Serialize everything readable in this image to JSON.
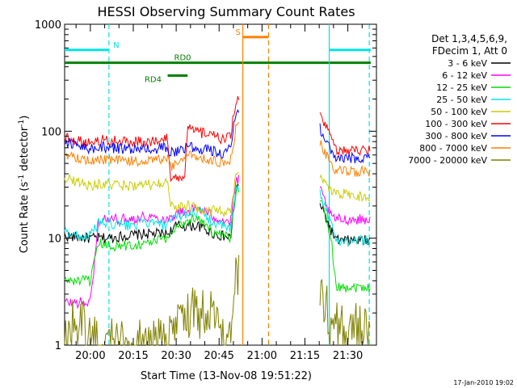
{
  "chart_data": {
    "type": "line",
    "title": "HESSI Observing Summary Count Rates",
    "xlabel": "Start Time (13-Nov-08 19:51:22)",
    "ylabel_parts": [
      "Count Rate (s",
      "-1",
      " detector",
      "-1",
      ")"
    ],
    "yscale": "log",
    "ylim": [
      1,
      1000
    ],
    "xlim_minutes": [
      -9,
      100
    ],
    "x_ticks": [
      {
        "label": "20:00",
        "minute": 0
      },
      {
        "label": "20:15",
        "minute": 15
      },
      {
        "label": "20:30",
        "minute": 30
      },
      {
        "label": "20:45",
        "minute": 45
      },
      {
        "label": "21:00",
        "minute": 60
      },
      {
        "label": "21:15",
        "minute": 75
      },
      {
        "label": "21:30",
        "minute": 90
      }
    ],
    "y_ticks": [
      {
        "label": "1",
        "value": 1
      },
      {
        "label": "10",
        "value": 10
      },
      {
        "label": "100",
        "value": 100
      },
      {
        "label": "1000",
        "value": 1000
      }
    ],
    "legend_header": [
      "Det 1,3,4,5,6,9,",
      "FDecim 1, Att 0"
    ],
    "legend_placement": "right",
    "footer_date": "17-Jan-2010 19:02",
    "flags": [
      {
        "label": "N",
        "color": "#00e5e5",
        "segments": [
          [
            -9,
            6.5
          ],
          [
            83.5,
            98
          ]
        ],
        "level": 0.92
      },
      {
        "label": "S",
        "color": "#ff8000",
        "segments": [
          [
            53.3,
            62.3
          ]
        ],
        "level": 0.96
      },
      {
        "label": "RD0",
        "color": "#008000",
        "segments": [
          [
            -9,
            98
          ]
        ],
        "level": 0.88
      },
      {
        "label": "RD4",
        "color": "#008000",
        "segments": [
          [
            27,
            34
          ]
        ],
        "level": 0.84
      }
    ],
    "vertical_lines": [
      {
        "minute": 6.5,
        "color": "#00e5e5",
        "style": "dashed"
      },
      {
        "minute": 83.5,
        "color": "#00e5e5",
        "style": "solid"
      },
      {
        "minute": 97.5,
        "color": "#00e5e5",
        "style": "dashed"
      },
      {
        "minute": 53.3,
        "color": "#ff8000",
        "style": "solid"
      },
      {
        "minute": 62.3,
        "color": "#ff8000",
        "style": "dashed"
      }
    ],
    "gap_minutes": [
      52,
      80
    ],
    "series": [
      {
        "name": "3 - 6 keV",
        "color": "#000000",
        "points": [
          [
            -9,
            10.5
          ],
          [
            0,
            10
          ],
          [
            6,
            10
          ],
          [
            12,
            10.5
          ],
          [
            20,
            11
          ],
          [
            27,
            11
          ],
          [
            30,
            13
          ],
          [
            38,
            13
          ],
          [
            43,
            11
          ],
          [
            49,
            10
          ],
          [
            51,
            30
          ],
          [
            80,
            22
          ],
          [
            84,
            12
          ],
          [
            86,
            9.5
          ],
          [
            98,
            9.5
          ]
        ]
      },
      {
        "name": "6 - 12 keV",
        "color": "#ff00ff",
        "points": [
          [
            -9,
            2.5
          ],
          [
            0,
            2.5
          ],
          [
            3,
            15
          ],
          [
            12,
            15
          ],
          [
            20,
            16
          ],
          [
            27,
            15
          ],
          [
            30,
            17
          ],
          [
            38,
            19
          ],
          [
            43,
            16
          ],
          [
            49,
            14
          ],
          [
            51,
            35
          ],
          [
            80,
            30
          ],
          [
            84,
            16
          ],
          [
            86,
            15
          ],
          [
            98,
            15
          ]
        ]
      },
      {
        "name": "12 - 25 keV",
        "color": "#00dd00",
        "points": [
          [
            -9,
            4
          ],
          [
            0,
            4
          ],
          [
            3,
            9
          ],
          [
            6,
            8.5
          ],
          [
            12,
            8.5
          ],
          [
            20,
            9
          ],
          [
            27,
            10
          ],
          [
            30,
            13
          ],
          [
            38,
            16
          ],
          [
            43,
            11
          ],
          [
            49,
            10
          ],
          [
            51,
            30
          ],
          [
            80,
            25
          ],
          [
            84,
            11
          ],
          [
            86,
            3.5
          ],
          [
            98,
            3.5
          ]
        ]
      },
      {
        "name": "25 - 50 keV",
        "color": "#00e5e5",
        "points": [
          [
            -9,
            11.5
          ],
          [
            -4,
            10.5
          ],
          [
            0,
            10.5
          ],
          [
            3,
            14
          ],
          [
            12,
            13
          ],
          [
            20,
            14
          ],
          [
            27,
            13
          ],
          [
            30,
            16
          ],
          [
            38,
            18
          ],
          [
            43,
            14
          ],
          [
            49,
            12
          ],
          [
            51,
            30
          ],
          [
            80,
            28
          ],
          [
            84,
            14
          ],
          [
            86,
            9.5
          ],
          [
            98,
            9.5
          ]
        ]
      },
      {
        "name": "50 - 100 keV",
        "color": "#cccc00",
        "points": [
          [
            -9,
            37
          ],
          [
            0,
            31
          ],
          [
            3,
            32
          ],
          [
            12,
            31
          ],
          [
            20,
            31
          ],
          [
            27,
            33
          ],
          [
            28,
            20
          ],
          [
            31,
            20
          ],
          [
            34,
            20
          ],
          [
            38,
            19
          ],
          [
            43,
            18
          ],
          [
            49,
            17
          ],
          [
            51,
            40
          ],
          [
            80,
            38
          ],
          [
            84,
            27
          ],
          [
            98,
            24
          ]
        ]
      },
      {
        "name": "100 - 300 keV",
        "color": "#ff0000",
        "points": [
          [
            -9,
            88
          ],
          [
            0,
            78
          ],
          [
            3,
            83
          ],
          [
            12,
            80
          ],
          [
            20,
            80
          ],
          [
            27,
            85
          ],
          [
            28,
            35
          ],
          [
            31,
            37
          ],
          [
            33,
            35
          ],
          [
            34,
            105
          ],
          [
            40,
            95
          ],
          [
            46,
            85
          ],
          [
            49,
            90
          ],
          [
            51,
            200
          ],
          [
            80,
            140
          ],
          [
            84,
            90
          ],
          [
            86,
            65
          ],
          [
            98,
            68
          ]
        ]
      },
      {
        "name": "300 - 800 keV",
        "color": "#0000ff",
        "points": [
          [
            -9,
            80
          ],
          [
            0,
            68
          ],
          [
            3,
            72
          ],
          [
            12,
            68
          ],
          [
            20,
            68
          ],
          [
            27,
            70
          ],
          [
            28,
            62
          ],
          [
            34,
            72
          ],
          [
            40,
            68
          ],
          [
            46,
            62
          ],
          [
            49,
            70
          ],
          [
            51,
            160
          ],
          [
            80,
            110
          ],
          [
            84,
            65
          ],
          [
            86,
            55
          ],
          [
            98,
            57
          ]
        ]
      },
      {
        "name": "800 - 7000 keV",
        "color": "#ff8000",
        "points": [
          [
            -9,
            62
          ],
          [
            0,
            52
          ],
          [
            3,
            55
          ],
          [
            12,
            52
          ],
          [
            20,
            53
          ],
          [
            27,
            55
          ],
          [
            28,
            46
          ],
          [
            34,
            60
          ],
          [
            40,
            56
          ],
          [
            46,
            50
          ],
          [
            49,
            52
          ],
          [
            51,
            110
          ],
          [
            80,
            80
          ],
          [
            84,
            50
          ],
          [
            86,
            42
          ],
          [
            98,
            42
          ]
        ]
      },
      {
        "name": "7000 - 20000 keV",
        "color": "#808000",
        "points": [
          [
            -9,
            1.5
          ],
          [
            0,
            1.5
          ],
          [
            3,
            1
          ],
          [
            27,
            1
          ],
          [
            30,
            2
          ],
          [
            44,
            2
          ],
          [
            46,
            1
          ],
          [
            49,
            1
          ],
          [
            51,
            5
          ],
          [
            80,
            4
          ],
          [
            84,
            1.5
          ],
          [
            86,
            1.5
          ],
          [
            98,
            1.5
          ]
        ]
      }
    ]
  }
}
